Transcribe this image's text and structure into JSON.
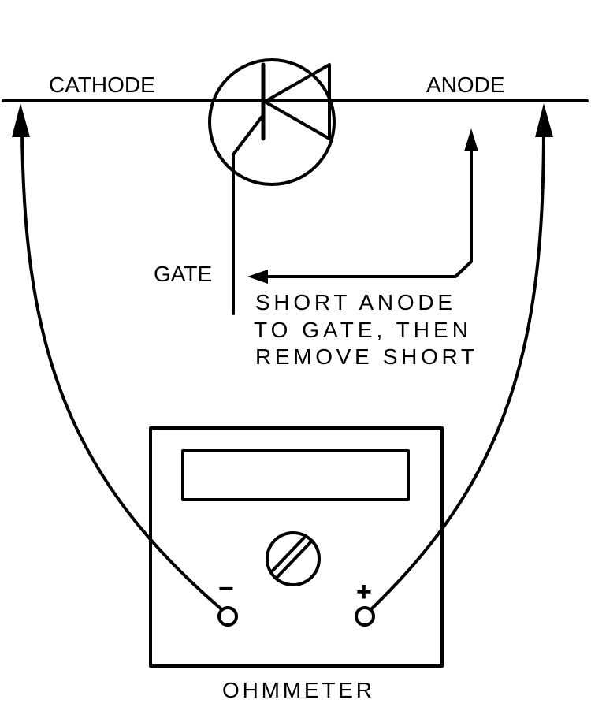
{
  "labels": {
    "cathode": "CATHODE",
    "anode": "ANODE",
    "gate": "GATE",
    "instruction": [
      "SHORT ANODE",
      "TO GATE, THEN",
      "REMOVE SHORT"
    ],
    "meter": "OHMMETER",
    "minus_terminal": "−",
    "plus_terminal": "+"
  },
  "components": {
    "device": "thyristor (SCR)",
    "meter_icon": "slotted-adjust-screw-icon",
    "terminal_icon": "terminal-post-icon"
  },
  "colors": {
    "ink": "#000000",
    "paper": "#ffffff"
  }
}
